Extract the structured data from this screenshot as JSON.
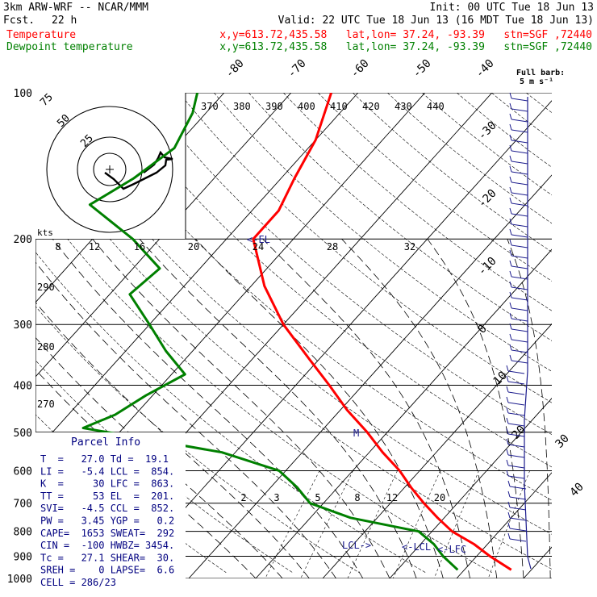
{
  "header": {
    "model": "3km ARW-WRF -- NCAR/MMM",
    "init": "Init: 00 UTC Tue 18 Jun 13",
    "fcst_label": "Fcst.",
    "fcst_value": "22 h",
    "valid": "Valid: 22 UTC Tue 18 Jun 13 (16 MDT Tue 18 Jun 13)",
    "temperature_label": "Temperature",
    "dewpoint_label": "Dewpoint temperature",
    "temperature_info": "x,y=613.72,435.58   lat,lon= 37.24, -93.39   stn=SGF ,72440",
    "dewpoint_info": "x,y=613.72,435.58   lat,lon= 37.24, -93.39   stn=SGF ,72440"
  },
  "colors": {
    "temperature": "#ff0000",
    "dewpoint": "#008000",
    "wind_barbs": "#1a1a8c",
    "parcel_info": "#000080"
  },
  "chart_data": {
    "type": "line",
    "subtype": "skew-T log-p sounding",
    "pressure_levels": [
      "100",
      "200",
      "300",
      "400",
      "500",
      "600",
      "700",
      "800",
      "900",
      "1000"
    ],
    "temperature_labels": [
      "-80",
      "-70",
      "-60",
      "-50",
      "-40",
      "-30",
      "-20",
      "-10",
      "0",
      "10",
      "20",
      "30",
      "40"
    ],
    "theta_labels": [
      "370",
      "380",
      "390",
      "400",
      "410",
      "420",
      "430",
      "440"
    ],
    "lower_theta_labels": [
      "290",
      "280",
      "270"
    ],
    "mixing_ratio_labels_upper": [
      "8",
      "12",
      "16",
      "20",
      "24",
      "28",
      "32"
    ],
    "mixing_ratio_labels_lower": [
      "2",
      "3",
      "5",
      "8",
      "12",
      "20"
    ],
    "series": [
      {
        "name": "Temperature",
        "color": "#ff0000",
        "points": [
          {
            "p": 100,
            "t": -64
          },
          {
            "p": 125,
            "t": -60
          },
          {
            "p": 150,
            "t": -58
          },
          {
            "p": 175,
            "t": -56
          },
          {
            "p": 200,
            "t": -56
          },
          {
            "p": 250,
            "t": -48
          },
          {
            "p": 300,
            "t": -40
          },
          {
            "p": 350,
            "t": -32
          },
          {
            "p": 400,
            "t": -25
          },
          {
            "p": 450,
            "t": -19
          },
          {
            "p": 500,
            "t": -13
          },
          {
            "p": 550,
            "t": -8
          },
          {
            "p": 600,
            "t": -3
          },
          {
            "p": 650,
            "t": 1
          },
          {
            "p": 700,
            "t": 5
          },
          {
            "p": 750,
            "t": 9
          },
          {
            "p": 800,
            "t": 13
          },
          {
            "p": 850,
            "t": 18
          },
          {
            "p": 900,
            "t": 22
          },
          {
            "p": 960,
            "t": 27
          }
        ]
      },
      {
        "name": "Dewpoint temperature",
        "color": "#008000",
        "points": [
          {
            "p": 100,
            "t": -84
          },
          {
            "p": 110,
            "t": -82
          },
          {
            "p": 130,
            "t": -80
          },
          {
            "p": 150,
            "t": -82
          },
          {
            "p": 170,
            "t": -85
          },
          {
            "p": 200,
            "t": -74
          },
          {
            "p": 230,
            "t": -66
          },
          {
            "p": 260,
            "t": -67
          },
          {
            "p": 300,
            "t": -60
          },
          {
            "p": 340,
            "t": -54
          },
          {
            "p": 380,
            "t": -48
          },
          {
            "p": 420,
            "t": -51
          },
          {
            "p": 460,
            "t": -53
          },
          {
            "p": 490,
            "t": -56
          },
          {
            "p": 550,
            "t": -32
          },
          {
            "p": 600,
            "t": -21
          },
          {
            "p": 650,
            "t": -16
          },
          {
            "p": 700,
            "t": -12
          },
          {
            "p": 750,
            "t": -4
          },
          {
            "p": 800,
            "t": 8
          },
          {
            "p": 850,
            "t": 12
          },
          {
            "p": 900,
            "t": 15
          },
          {
            "p": 960,
            "t": 19
          }
        ]
      }
    ],
    "level_marks": [
      {
        "label": "EL",
        "p": 201
      },
      {
        "label": "LCL",
        "p": 854
      },
      {
        "label": "LFC",
        "p": 863
      }
    ],
    "hodograph": {
      "kts_label": "kts",
      "rings": [
        "75",
        "50",
        "25"
      ]
    },
    "wind_barb_title": "Full barb:",
    "wind_barb_unit": "5 m s⁻¹",
    "parcel_info": {
      "title": "Parcel Info",
      "rows": [
        "T  =   27.0 Td =  19.1",
        "LI =   -5.4 LCL =  854.",
        "K  =     30 LFC =  863.",
        "TT =     53 EL  =  201.",
        "SVI=   -4.5 CCL =  852.",
        "PW =   3.45 YGP =   0.2",
        "CAPE=  1653 SWEAT=  292",
        "CIN =  -100 HWBZ= 3454.",
        "Tc =   27.1 SHEAR=  30.",
        "SREH =    0 LAPSE=  6.6",
        "CELL = 286/23"
      ]
    }
  }
}
